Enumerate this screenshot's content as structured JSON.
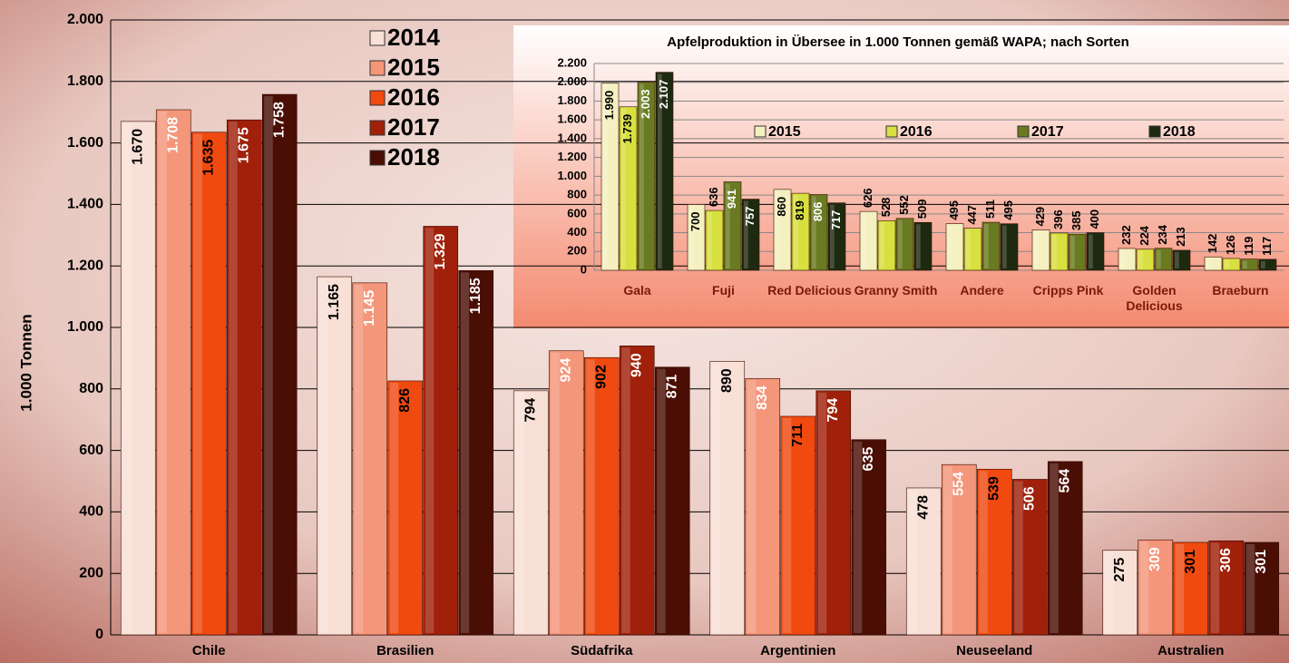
{
  "chart_data": [
    {
      "type": "bar",
      "ylabel": "1.000 Tonnen",
      "categories": [
        "Chile",
        "Brasilien",
        "Südafrika",
        "Argentinien",
        "Neuseeland",
        "Australien"
      ],
      "series": [
        {
          "name": "2014",
          "color": "#f8e0d6",
          "values": [
            1670,
            1165,
            794,
            890,
            478,
            275
          ],
          "value_labels": [
            "1.670",
            "1.165",
            "794",
            "890",
            "478",
            "275"
          ]
        },
        {
          "name": "2015",
          "color": "#f4967a",
          "values": [
            1708,
            1145,
            924,
            834,
            554,
            309
          ],
          "value_labels": [
            "1.708",
            "1.145",
            "924",
            "834",
            "554",
            "309"
          ]
        },
        {
          "name": "2016",
          "color": "#f04a10",
          "values": [
            1635,
            826,
            902,
            711,
            539,
            301
          ],
          "value_labels": [
            "1.635",
            "826",
            "902",
            "711",
            "539",
            "301"
          ]
        },
        {
          "name": "2017",
          "color": "#a0200a",
          "values": [
            1675,
            1329,
            940,
            794,
            506,
            306
          ],
          "value_labels": [
            "1.675",
            "1.329",
            "940",
            "794",
            "506",
            "306"
          ]
        },
        {
          "name": "2018",
          "color": "#4a0e04",
          "values": [
            1758,
            1185,
            871,
            635,
            564,
            301
          ],
          "value_labels": [
            "1.758",
            "1.185",
            "871",
            "635",
            "564",
            "301"
          ]
        }
      ],
      "ylim": [
        0,
        2000
      ],
      "yticks": [
        0,
        200,
        400,
        600,
        800,
        {
          "value": 1000,
          "label": "1.000"
        },
        {
          "value": 1200,
          "label": "1.200"
        },
        {
          "value": 1400,
          "label": "1.400"
        },
        {
          "value": 1600,
          "label": "1.600"
        },
        {
          "value": 1800,
          "label": "1.800"
        },
        {
          "value": 2000,
          "label": "2.000"
        }
      ],
      "grid": true
    },
    {
      "type": "bar",
      "title": "Apfelproduktion in Übersee in 1.000 Tonnen gemäß WAPA; nach Sorten",
      "categories": [
        "Gala",
        "Fuji",
        "Red Delicious",
        "Granny Smith",
        "Andere",
        "Cripps Pink",
        "Golden Delicious",
        "Braeburn"
      ],
      "series": [
        {
          "name": "2015",
          "color": "#f4f0c0",
          "values": [
            1990,
            700,
            860,
            626,
            495,
            429,
            232,
            142
          ],
          "value_labels": [
            "1.990",
            "700",
            "860",
            "626",
            "495",
            "429",
            "232",
            "142"
          ]
        },
        {
          "name": "2016",
          "color": "#d8e040",
          "values": [
            1739,
            636,
            819,
            528,
            447,
            396,
            224,
            126
          ],
          "value_labels": [
            "1.739",
            "636",
            "819",
            "528",
            "447",
            "396",
            "224",
            "126"
          ]
        },
        {
          "name": "2017",
          "color": "#6a7a20",
          "values": [
            2003,
            941,
            806,
            552,
            511,
            385,
            234,
            119
          ],
          "value_labels": [
            "2.003",
            "941",
            "806",
            "552",
            "511",
            "385",
            "234",
            "119"
          ]
        },
        {
          "name": "2018",
          "color": "#1e2a10",
          "values": [
            2107,
            757,
            717,
            509,
            495,
            400,
            213,
            117
          ],
          "value_labels": [
            "2.107",
            "757",
            "717",
            "509",
            "495",
            "400",
            "213",
            "117"
          ]
        }
      ],
      "ylim": [
        0,
        2200
      ],
      "yticks": [
        0,
        200,
        400,
        600,
        800,
        {
          "value": 1000,
          "label": "1.000"
        },
        {
          "value": 1200,
          "label": "1.200"
        },
        {
          "value": 1400,
          "label": "1.400"
        },
        {
          "value": 1600,
          "label": "1.600"
        },
        {
          "value": 1800,
          "label": "1.800"
        },
        {
          "value": 2000,
          "label": "2.000"
        },
        {
          "value": 2200,
          "label": "2.200"
        }
      ],
      "grid": true
    }
  ]
}
